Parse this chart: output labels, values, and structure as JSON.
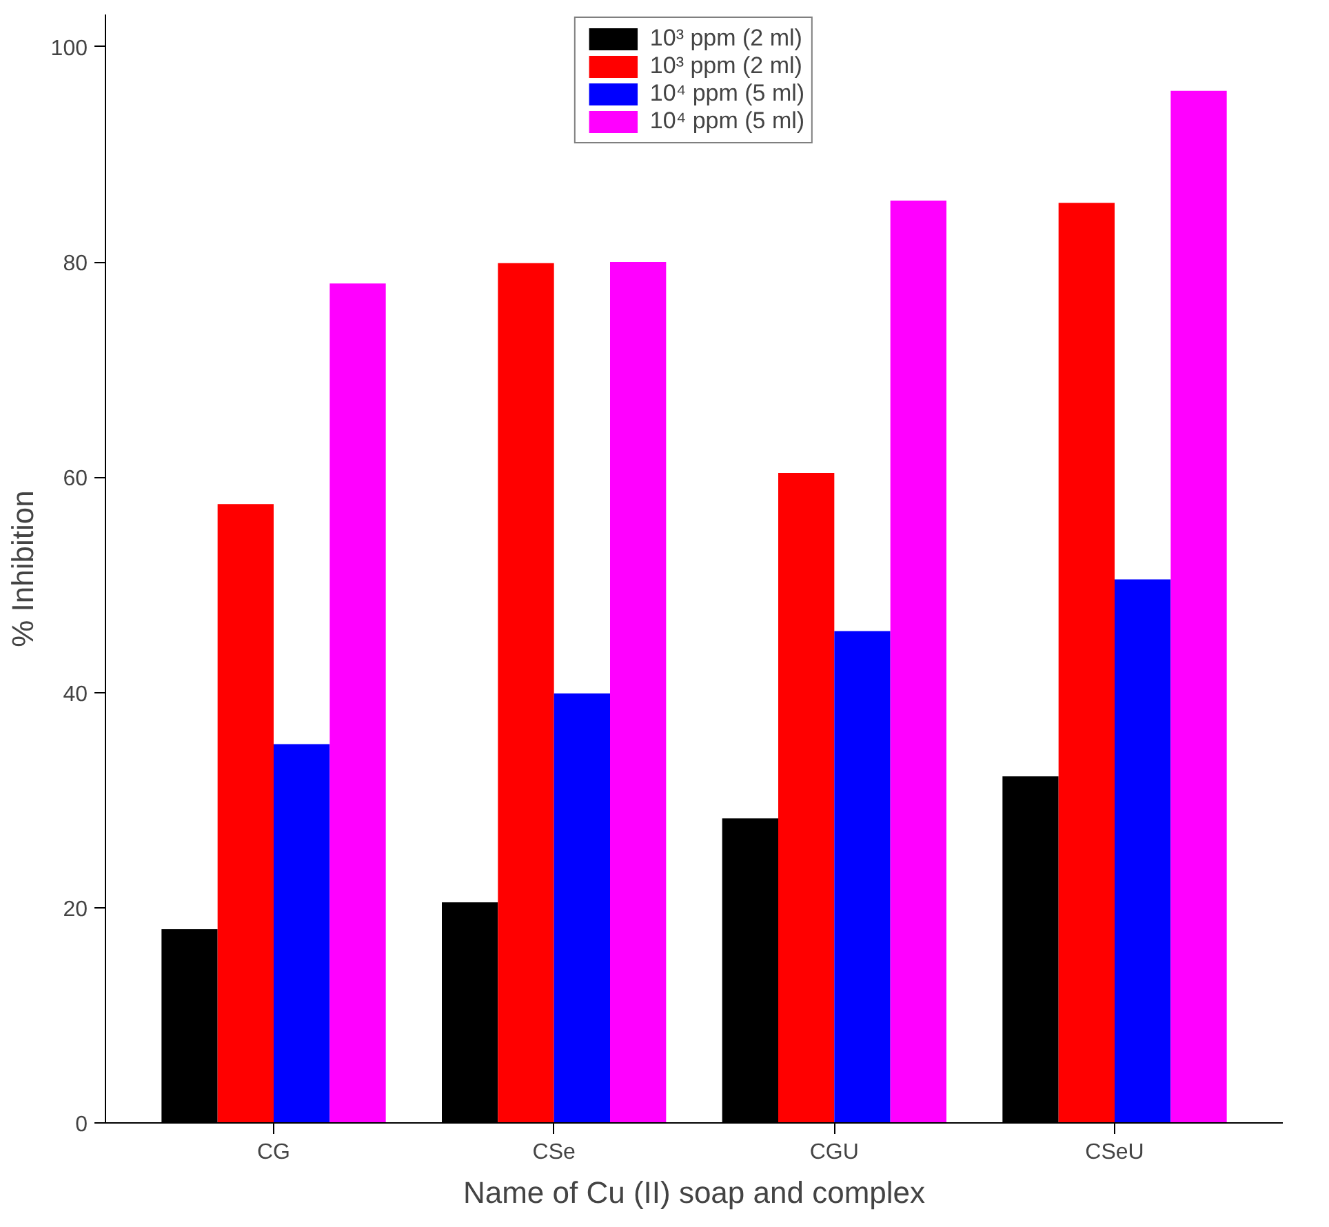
{
  "chart_data": {
    "type": "bar",
    "xlabel": "Name of Cu (II) soap and complex",
    "ylabel": "% Inhibition",
    "categories": [
      "CG",
      "CSe",
      "CGU",
      "CSeU"
    ],
    "series": [
      {
        "name": "10³ ppm (2 ml)",
        "color": "#000000",
        "values": [
          18,
          20.5,
          28.3,
          32.2
        ]
      },
      {
        "name": "10³ ppm (2 ml)",
        "color": "#ff0000",
        "values": [
          57.5,
          79.9,
          60.4,
          85.5
        ]
      },
      {
        "name": "10⁴ ppm (5 ml)",
        "color": "#0000ff",
        "values": [
          35.2,
          39.9,
          45.7,
          50.5
        ]
      },
      {
        "name": "10⁴ ppm (5 ml)",
        "color": "#ff00ff",
        "values": [
          78,
          80,
          85.7,
          95.9
        ]
      }
    ],
    "ylim": [
      0,
      103
    ],
    "yticks": [
      0,
      20,
      40,
      60,
      80,
      100
    ],
    "grid": false,
    "legend": "top right"
  }
}
